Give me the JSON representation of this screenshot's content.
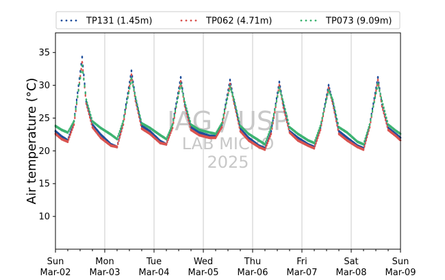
{
  "chart_data": {
    "type": "line",
    "xlabel": "",
    "ylabel": "Air temperature (°C)",
    "xlim": [
      "2025-03-02",
      "2025-03-09"
    ],
    "ylim": [
      5,
      38
    ],
    "yticks": [
      10,
      15,
      20,
      25,
      30,
      35
    ],
    "xticks": [
      {
        "date": "2025-03-02",
        "day": "Sun",
        "label": "Mar-02"
      },
      {
        "date": "2025-03-03",
        "day": "Mon",
        "label": "Mar-03"
      },
      {
        "date": "2025-03-04",
        "day": "Tue",
        "label": "Mar-04"
      },
      {
        "date": "2025-03-05",
        "day": "Wed",
        "label": "Mar-05"
      },
      {
        "date": "2025-03-06",
        "day": "Thu",
        "label": "Mar-06"
      },
      {
        "date": "2025-03-07",
        "day": "Fri",
        "label": "Mar-07"
      },
      {
        "date": "2025-03-08",
        "day": "Sat",
        "label": "Mar-08"
      },
      {
        "date": "2025-03-09",
        "day": "Sun",
        "label": "Mar-09"
      }
    ],
    "grid": "vertical lines at day boundaries",
    "legend_position": "top",
    "series": [
      {
        "name": "TP131 (1.45m)",
        "color": "#1f4e9c",
        "x": [
          "2025-03-02 00:00",
          "2025-03-02 03:00",
          "2025-03-02 06:00",
          "2025-03-02 09:00",
          "2025-03-02 13:00",
          "2025-03-02 15:00",
          "2025-03-02 18:00",
          "2025-03-02 22:00",
          "2025-03-03 03:00",
          "2025-03-03 06:00",
          "2025-03-03 09:00",
          "2025-03-03 13:00",
          "2025-03-03 15:00",
          "2025-03-03 18:00",
          "2025-03-03 22:00",
          "2025-03-04 03:00",
          "2025-03-04 06:00",
          "2025-03-04 09:00",
          "2025-03-04 13:00",
          "2025-03-04 15:00",
          "2025-03-04 18:00",
          "2025-03-04 22:00",
          "2025-03-05 03:00",
          "2025-03-05 06:00",
          "2025-03-05 09:00",
          "2025-03-05 13:00",
          "2025-03-05 15:00",
          "2025-03-05 18:00",
          "2025-03-05 22:00",
          "2025-03-06 03:00",
          "2025-03-06 06:00",
          "2025-03-06 09:00",
          "2025-03-06 13:00",
          "2025-03-06 15:00",
          "2025-03-06 18:00",
          "2025-03-06 22:00",
          "2025-03-07 03:00",
          "2025-03-07 06:00",
          "2025-03-07 09:00",
          "2025-03-07 13:00",
          "2025-03-07 15:00",
          "2025-03-07 18:00",
          "2025-03-07 22:00",
          "2025-03-08 03:00",
          "2025-03-08 06:00",
          "2025-03-08 09:00",
          "2025-03-08 13:00",
          "2025-03-08 15:00",
          "2025-03-08 18:00",
          "2025-03-08 22:00",
          "2025-03-09 00:00"
        ],
        "y": [
          23.0,
          22.2,
          21.6,
          24.5,
          34.3,
          27.5,
          24.0,
          22.5,
          21.0,
          20.6,
          24.5,
          32.2,
          28.0,
          23.8,
          23.0,
          21.5,
          21.0,
          24.0,
          31.2,
          27.0,
          23.6,
          22.8,
          22.3,
          22.2,
          24.0,
          30.8,
          27.5,
          23.4,
          22.0,
          20.8,
          20.4,
          23.0,
          30.5,
          27.0,
          23.0,
          22.0,
          21.0,
          20.6,
          23.5,
          30.0,
          27.5,
          23.0,
          22.0,
          20.8,
          20.4,
          24.0,
          31.2,
          27.0,
          23.5,
          22.5,
          22.0
        ]
      },
      {
        "name": "TP062 (4.71m)",
        "color": "#d9534f",
        "x": [
          "2025-03-02 00:00",
          "2025-03-02 03:00",
          "2025-03-02 06:00",
          "2025-03-02 09:00",
          "2025-03-02 13:00",
          "2025-03-02 15:00",
          "2025-03-02 18:00",
          "2025-03-02 22:00",
          "2025-03-03 03:00",
          "2025-03-03 06:00",
          "2025-03-03 09:00",
          "2025-03-03 13:00",
          "2025-03-03 15:00",
          "2025-03-03 18:00",
          "2025-03-03 22:00",
          "2025-03-04 03:00",
          "2025-03-04 06:00",
          "2025-03-04 09:00",
          "2025-03-04 13:00",
          "2025-03-04 15:00",
          "2025-03-04 18:00",
          "2025-03-04 22:00",
          "2025-03-05 03:00",
          "2025-03-05 06:00",
          "2025-03-05 09:00",
          "2025-03-05 13:00",
          "2025-03-05 15:00",
          "2025-03-05 18:00",
          "2025-03-05 22:00",
          "2025-03-06 03:00",
          "2025-03-06 06:00",
          "2025-03-06 09:00",
          "2025-03-06 13:00",
          "2025-03-06 15:00",
          "2025-03-06 18:00",
          "2025-03-06 22:00",
          "2025-03-07 03:00",
          "2025-03-07 06:00",
          "2025-03-07 09:00",
          "2025-03-07 13:00",
          "2025-03-07 15:00",
          "2025-03-07 18:00",
          "2025-03-07 22:00",
          "2025-03-08 03:00",
          "2025-03-08 06:00",
          "2025-03-08 09:00",
          "2025-03-08 13:00",
          "2025-03-08 15:00",
          "2025-03-08 18:00",
          "2025-03-08 22:00",
          "2025-03-09 00:00"
        ],
        "y": [
          22.6,
          21.8,
          21.4,
          24.0,
          33.5,
          27.2,
          23.6,
          22.0,
          20.8,
          20.6,
          24.0,
          31.6,
          27.6,
          23.4,
          22.6,
          21.2,
          21.0,
          23.5,
          30.6,
          26.8,
          23.2,
          22.4,
          22.0,
          22.0,
          23.6,
          30.2,
          27.2,
          23.0,
          21.6,
          20.6,
          20.2,
          22.6,
          30.0,
          26.6,
          22.8,
          21.6,
          20.8,
          20.4,
          23.2,
          29.6,
          27.2,
          22.6,
          21.6,
          20.6,
          20.2,
          23.6,
          30.8,
          26.8,
          23.2,
          22.2,
          21.6
        ]
      },
      {
        "name": "TP073 (9.09m)",
        "color": "#3cb371",
        "x": [
          "2025-03-02 00:00",
          "2025-03-02 03:00",
          "2025-03-02 06:00",
          "2025-03-02 09:00",
          "2025-03-02 13:00",
          "2025-03-02 15:00",
          "2025-03-02 18:00",
          "2025-03-02 22:00",
          "2025-03-03 03:00",
          "2025-03-03 06:00",
          "2025-03-03 09:00",
          "2025-03-03 13:00",
          "2025-03-03 15:00",
          "2025-03-03 18:00",
          "2025-03-03 22:00",
          "2025-03-04 03:00",
          "2025-03-04 06:00",
          "2025-03-04 09:00",
          "2025-03-04 13:00",
          "2025-03-04 15:00",
          "2025-03-04 18:00",
          "2025-03-04 22:00",
          "2025-03-05 03:00",
          "2025-03-05 06:00",
          "2025-03-05 09:00",
          "2025-03-05 13:00",
          "2025-03-05 15:00",
          "2025-03-05 18:00",
          "2025-03-05 22:00",
          "2025-03-06 03:00",
          "2025-03-06 06:00",
          "2025-03-06 09:00",
          "2025-03-06 13:00",
          "2025-03-06 15:00",
          "2025-03-06 18:00",
          "2025-03-06 22:00",
          "2025-03-07 03:00",
          "2025-03-07 06:00",
          "2025-03-07 09:00",
          "2025-03-07 13:00",
          "2025-03-07 15:00",
          "2025-03-07 18:00",
          "2025-03-07 22:00",
          "2025-03-08 03:00",
          "2025-03-08 06:00",
          "2025-03-08 09:00",
          "2025-03-08 13:00",
          "2025-03-08 15:00",
          "2025-03-08 18:00",
          "2025-03-08 22:00",
          "2025-03-09 00:00"
        ],
        "y": [
          23.8,
          23.2,
          22.8,
          24.5,
          33.0,
          27.8,
          24.5,
          23.5,
          22.5,
          21.8,
          24.5,
          31.0,
          28.2,
          24.2,
          23.5,
          22.4,
          21.8,
          24.0,
          30.2,
          27.4,
          24.0,
          23.2,
          22.8,
          22.6,
          24.2,
          29.8,
          27.8,
          23.8,
          22.6,
          21.6,
          21.0,
          23.6,
          29.6,
          27.4,
          23.6,
          22.6,
          21.6,
          21.2,
          23.8,
          29.2,
          27.8,
          23.6,
          22.8,
          21.4,
          21.0,
          24.0,
          30.2,
          27.6,
          24.0,
          23.0,
          22.6
        ]
      }
    ]
  },
  "watermark": {
    "line1": "IAG / USP",
    "line2": "LAB MICRO",
    "line3": "2025"
  }
}
